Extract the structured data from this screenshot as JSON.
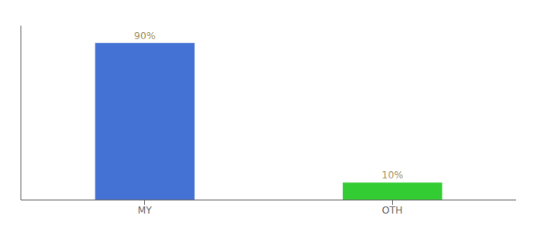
{
  "chart_data": {
    "type": "bar",
    "categories": [
      "MY",
      "OTH"
    ],
    "values": [
      90,
      10
    ],
    "value_labels": [
      "90%",
      "10%"
    ],
    "colors": [
      "#4472d4",
      "#33cc33"
    ],
    "ylim": [
      0,
      100
    ],
    "yticks": [],
    "data_labels": true,
    "tick_labels": "x",
    "grid": false
  }
}
